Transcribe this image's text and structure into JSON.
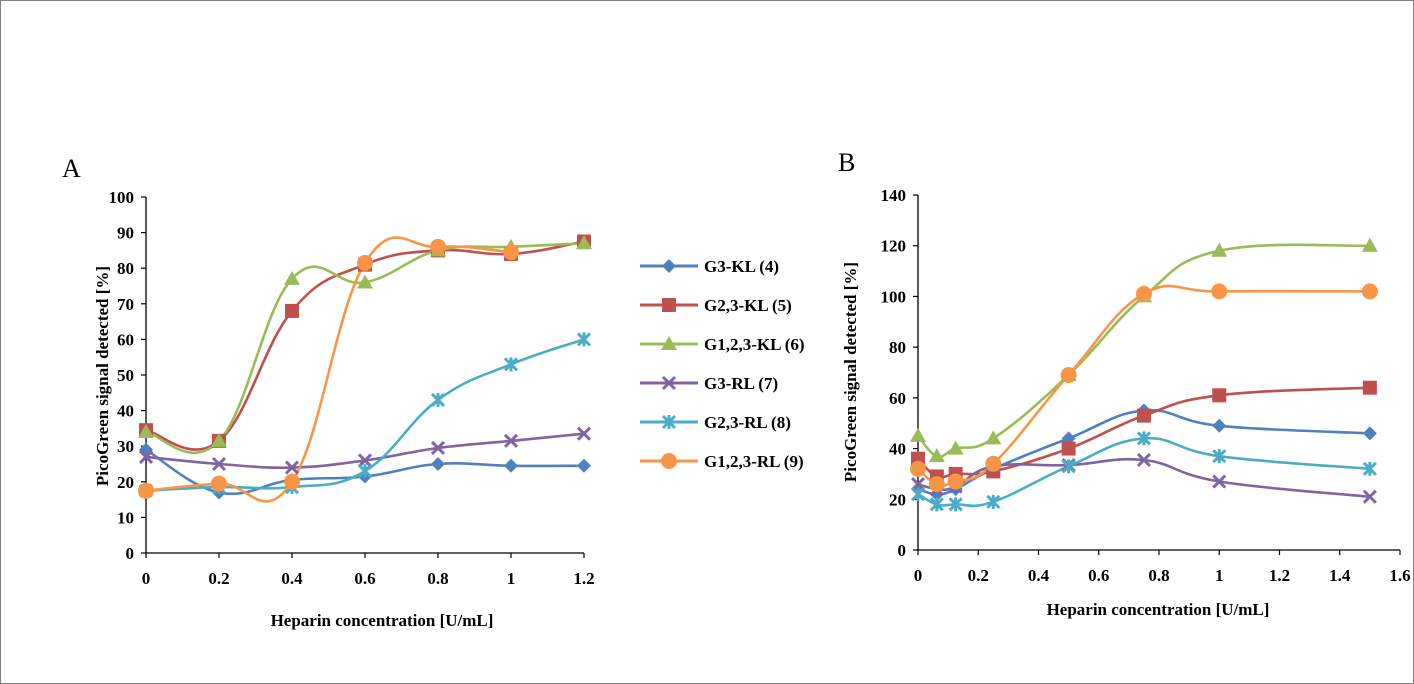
{
  "chart_data": [
    {
      "type": "line",
      "panel_label": "A",
      "xlabel": "Heparin concentration [U/mL]",
      "ylabel": "PicoGreen signal detected [%]",
      "xlim": [
        0,
        1.2
      ],
      "ylim": [
        0,
        100
      ],
      "xticks": [
        "0",
        "0.2",
        "0.4",
        "0.6",
        "0.8",
        "1",
        "1.2"
      ],
      "yticks": [
        "0",
        "10",
        "20",
        "30",
        "40",
        "50",
        "60",
        "70",
        "80",
        "90",
        "100"
      ],
      "x": [
        0,
        0.2,
        0.4,
        0.6,
        0.8,
        1.0,
        1.2
      ],
      "series": [
        {
          "name": "G3-KL (4)",
          "color": "#4f81bd",
          "marker": "diamond",
          "values": [
            29,
            17,
            20.5,
            21.5,
            25,
            24.5,
            24.5
          ]
        },
        {
          "name": "G2,3-KL (5)",
          "color": "#c0504d",
          "marker": "square",
          "values": [
            34.5,
            31.5,
            68,
            81,
            85,
            84,
            87.5
          ]
        },
        {
          "name": "G1,2,3-KL (6)",
          "color": "#9bbb59",
          "marker": "triangle",
          "values": [
            34,
            31.5,
            77,
            76,
            85,
            86,
            87
          ]
        },
        {
          "name": "G3-RL (7)",
          "color": "#8064a2",
          "marker": "x",
          "values": [
            27,
            25,
            24,
            26,
            29.5,
            31.5,
            33.5
          ]
        },
        {
          "name": "G2,3-RL (8)",
          "color": "#4bacc6",
          "marker": "star",
          "values": [
            17.5,
            18.5,
            18.5,
            23,
            43,
            53,
            60
          ]
        },
        {
          "name": "G1,2,3-RL (9)",
          "color": "#f79646",
          "marker": "circle",
          "values": [
            17.5,
            19.5,
            20,
            81.5,
            86,
            84.5,
            null
          ]
        }
      ],
      "legend": "right"
    },
    {
      "type": "line",
      "panel_label": "B",
      "xlabel": "Heparin concentration [U/mL]",
      "ylabel": "PicoGreen signal detected [%]",
      "xlim": [
        0,
        1.6
      ],
      "ylim": [
        0,
        140
      ],
      "xticks": [
        "0",
        "0.2",
        "0.4",
        "0.6",
        "0.8",
        "1",
        "1.2",
        "1.4",
        "1.6"
      ],
      "yticks": [
        "0",
        "20",
        "40",
        "60",
        "80",
        "100",
        "120",
        "140"
      ],
      "x": [
        0,
        0.0625,
        0.125,
        0.25,
        0.5,
        0.75,
        1.0,
        1.5
      ],
      "series": [
        {
          "name": "G3-KL (4)",
          "color": "#4f81bd",
          "marker": "diamond",
          "values": [
            24,
            22,
            24,
            32,
            44,
            55,
            49,
            46
          ]
        },
        {
          "name": "G2,3-KL (5)",
          "color": "#c0504d",
          "marker": "square",
          "values": [
            36,
            29,
            30,
            31,
            40,
            53,
            61,
            64
          ]
        },
        {
          "name": "G1,2,3-KL (6)",
          "color": "#9bbb59",
          "marker": "triangle",
          "values": [
            45,
            37,
            40,
            44,
            69,
            100,
            118,
            120
          ]
        },
        {
          "name": "G3-RL (7)",
          "color": "#8064a2",
          "marker": "x",
          "values": [
            26,
            24,
            25,
            33,
            33.5,
            35.5,
            27,
            21
          ]
        },
        {
          "name": "G2,3-RL (8)",
          "color": "#4bacc6",
          "marker": "star",
          "values": [
            22,
            18,
            18,
            19,
            33,
            44,
            37,
            32
          ]
        },
        {
          "name": "G1,2,3-RL (9)",
          "color": "#f79646",
          "marker": "circle",
          "values": [
            32,
            26,
            27,
            34,
            69,
            101,
            102,
            102
          ]
        }
      ]
    }
  ]
}
